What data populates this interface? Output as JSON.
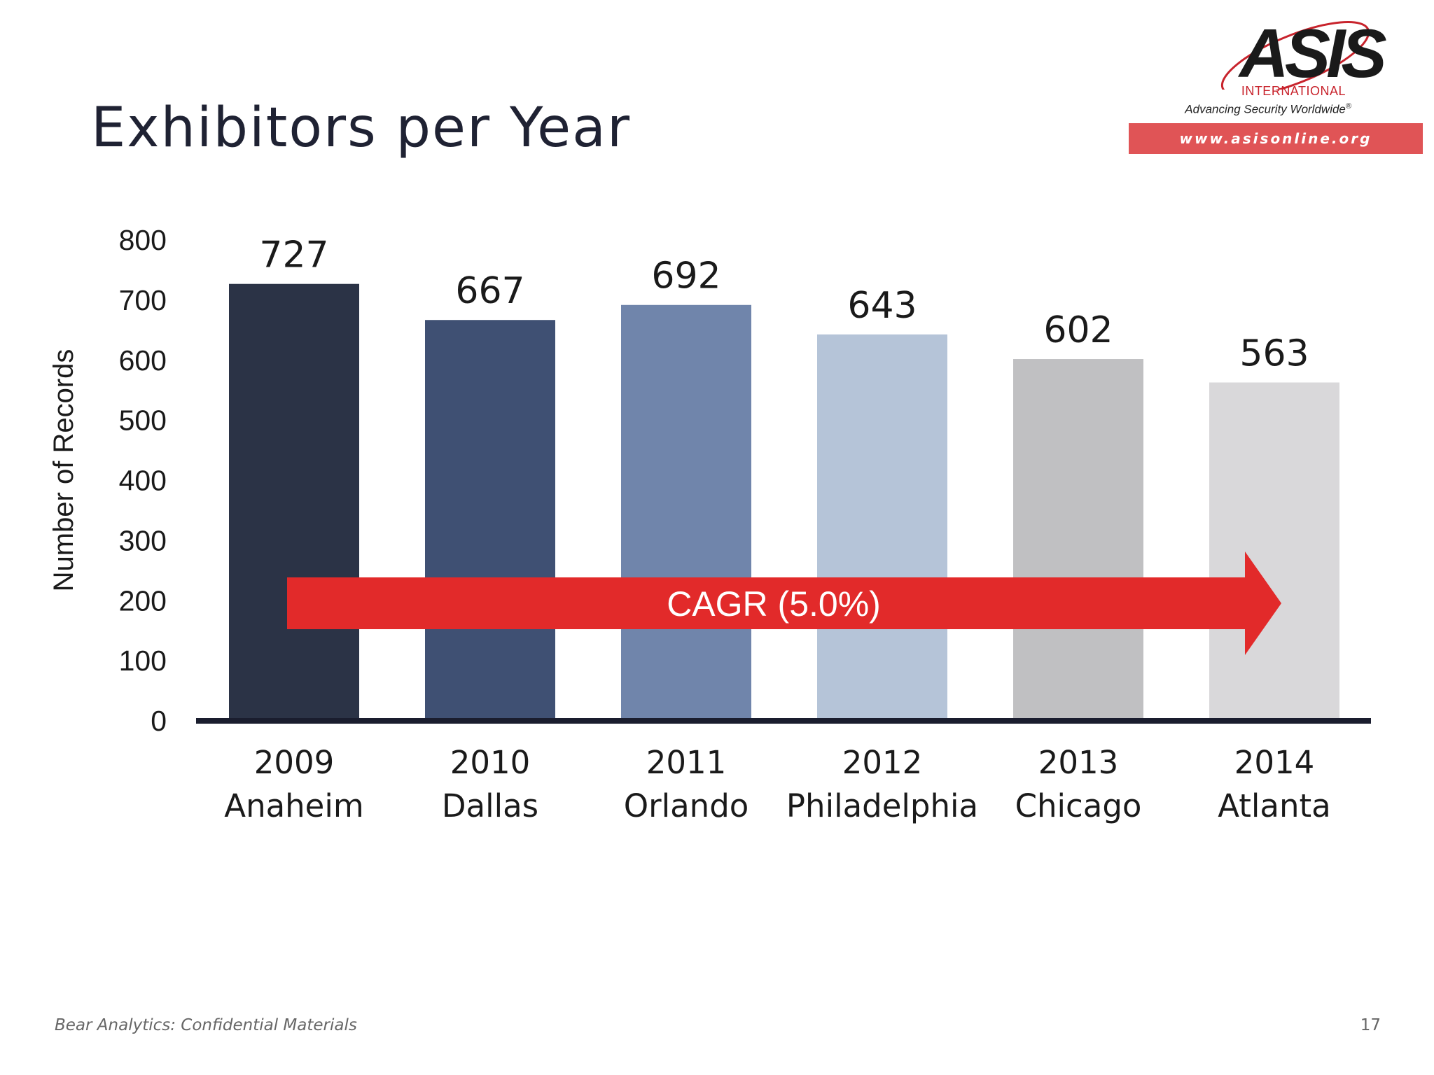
{
  "slide": {
    "title": "Exhibitors per Year",
    "footer": "Bear Analytics: Confidential Materials",
    "page_number": "17"
  },
  "logo": {
    "wordmark": "ASIS",
    "subtitle": "INTERNATIONAL",
    "tagline": "Advancing Security Worldwide",
    "registered": "®",
    "url": "www.asisonline.org",
    "colors": {
      "red": "#c8232c",
      "bar": "#e05456",
      "dark": "#1a1a1a"
    }
  },
  "chart_data": {
    "type": "bar",
    "title": "Exhibitors per Year",
    "ylabel": "Number of Records",
    "xlabel": "",
    "ylim": [
      0,
      800
    ],
    "yticks": [
      0,
      100,
      200,
      300,
      400,
      500,
      600,
      700,
      800
    ],
    "categories": [
      {
        "year": "2009",
        "city": "Anaheim"
      },
      {
        "year": "2010",
        "city": "Dallas"
      },
      {
        "year": "2011",
        "city": "Orlando"
      },
      {
        "year": "2012",
        "city": "Philadelphia"
      },
      {
        "year": "2013",
        "city": "Chicago"
      },
      {
        "year": "2014",
        "city": "Atlanta"
      }
    ],
    "values": [
      727,
      667,
      692,
      643,
      602,
      563
    ],
    "bar_colors": [
      "#2b3346",
      "#3f5073",
      "#7085ab",
      "#b5c4d8",
      "#c0c0c2",
      "#d9d8da"
    ],
    "annotation": {
      "text": "CAGR (5.0%)",
      "color": "#e22a2a"
    },
    "grid": false,
    "legend": "none"
  }
}
